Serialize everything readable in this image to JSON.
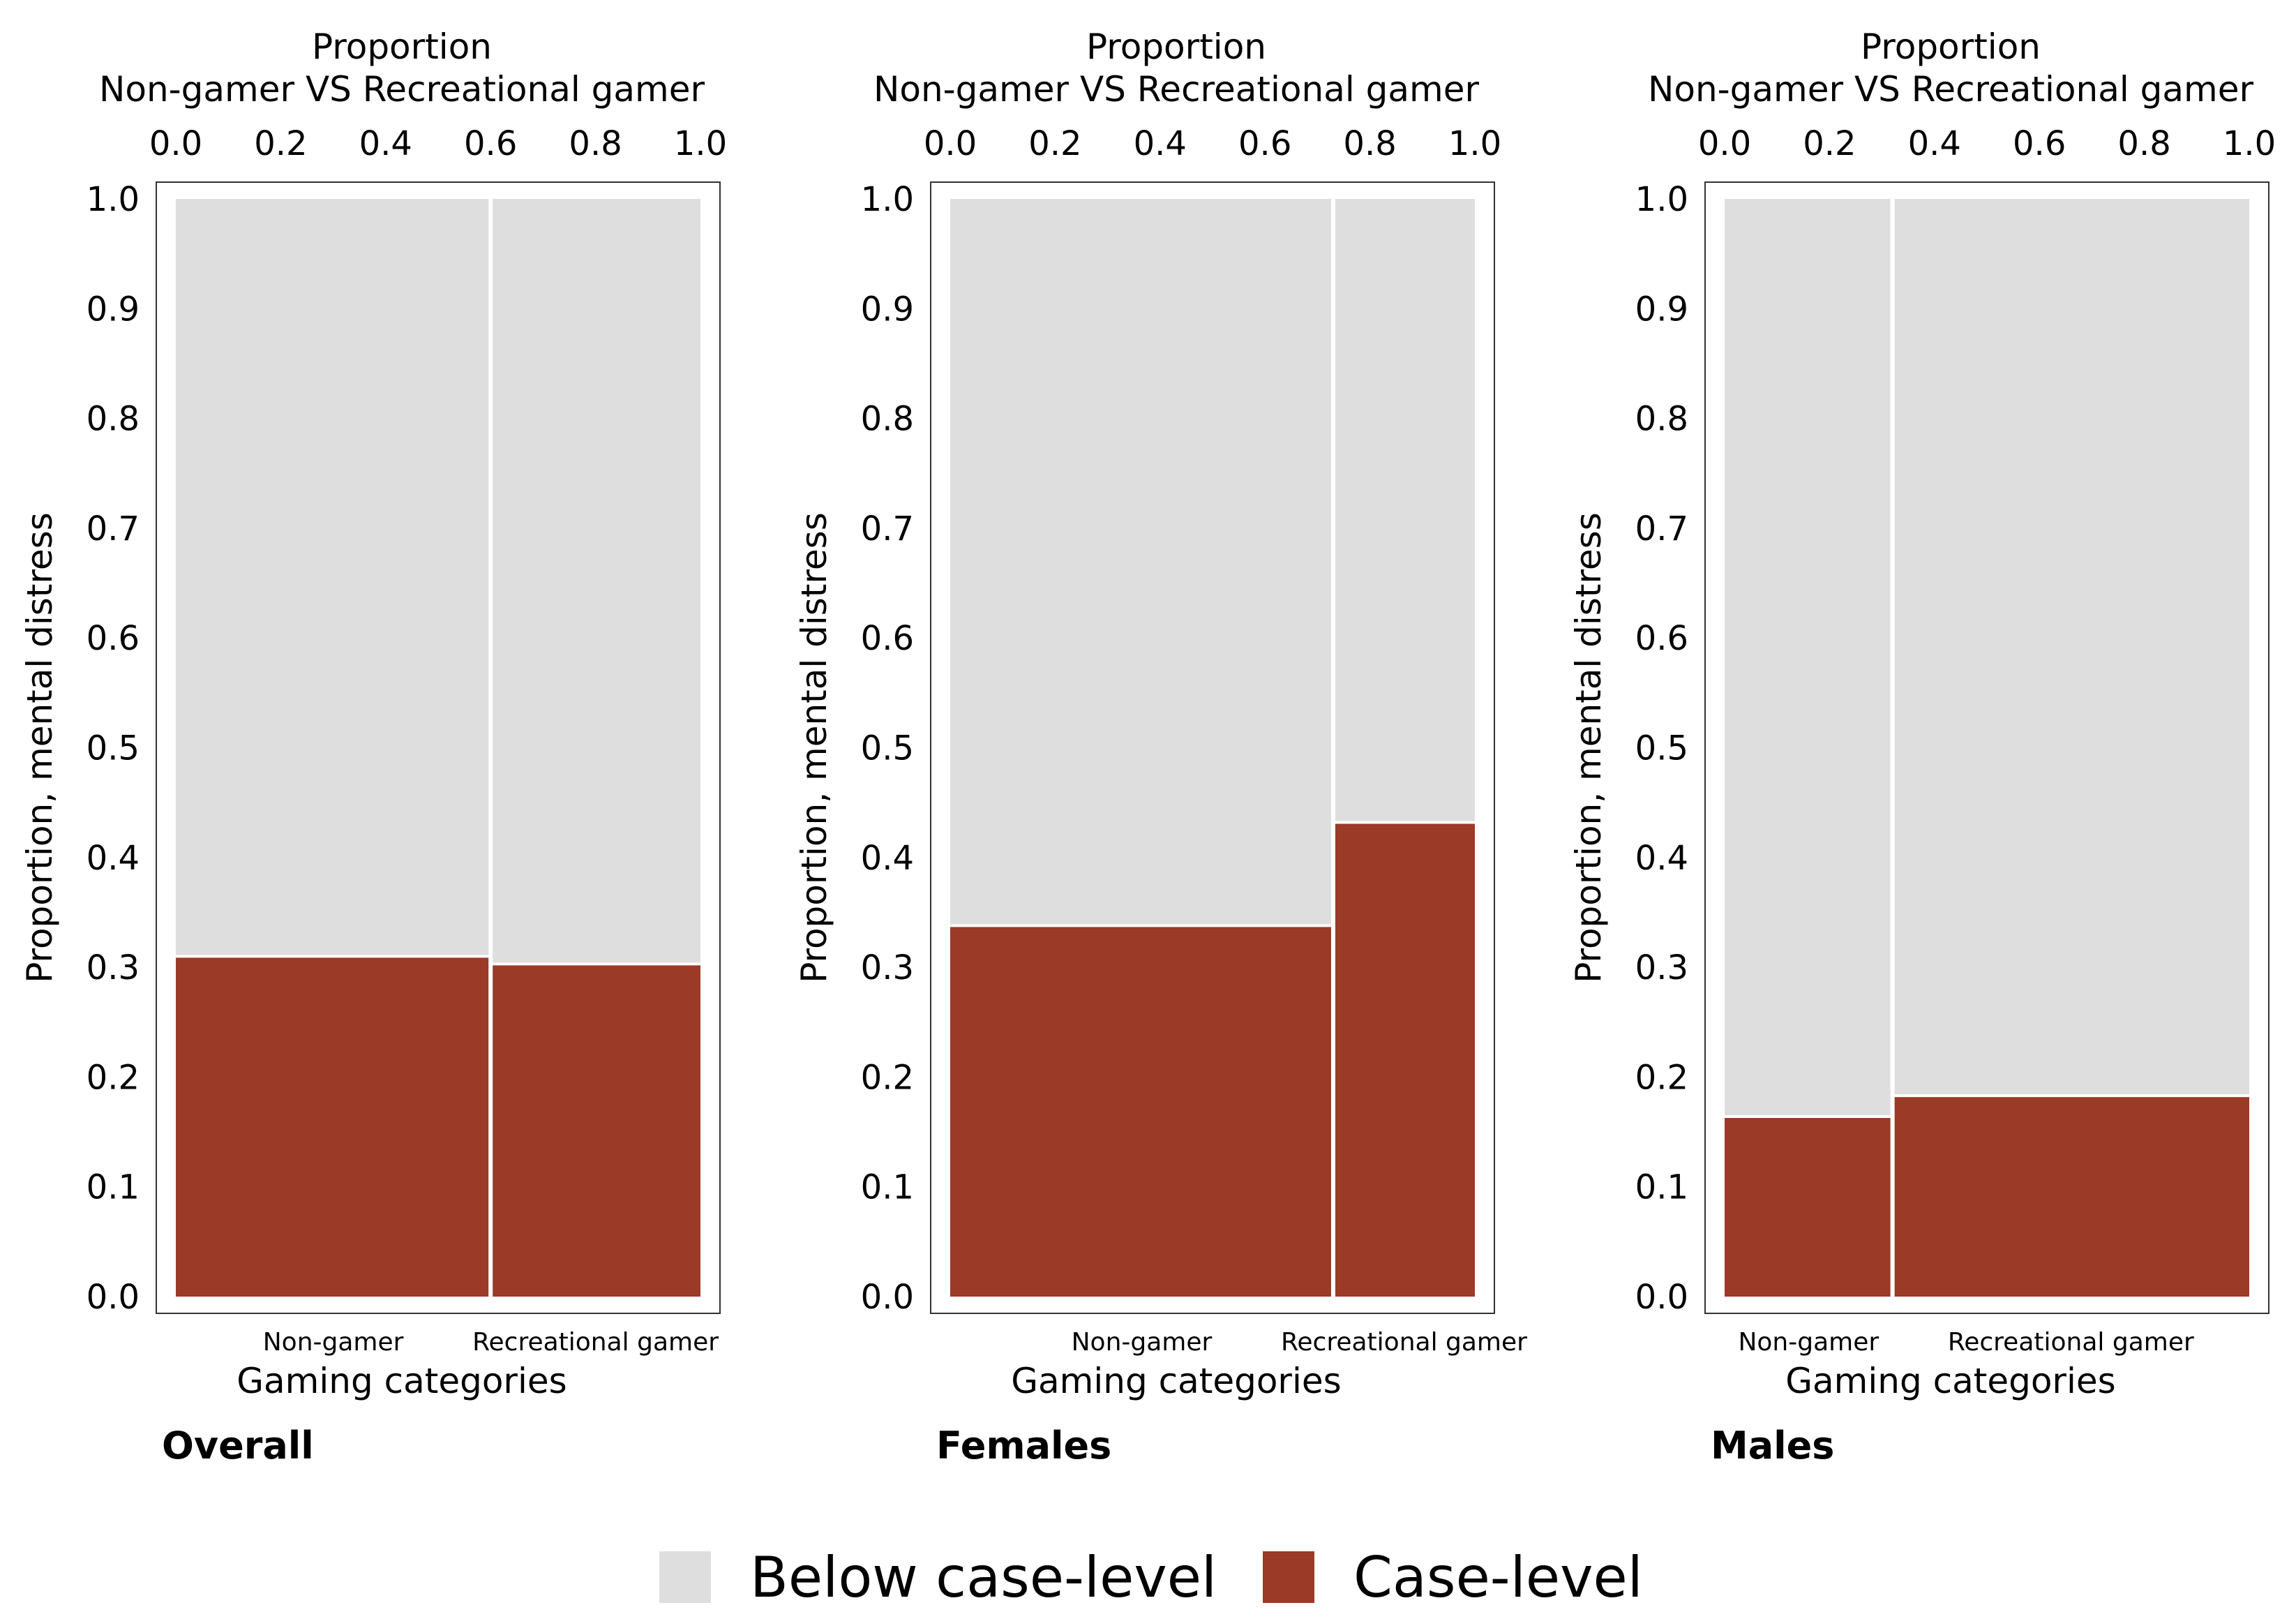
{
  "colors": {
    "below": "#dedede",
    "case": "#9b3a27",
    "frame": "#333333",
    "divider": "#ffffff"
  },
  "legend": {
    "items": [
      {
        "label": "Below case-level",
        "color": "#dedede"
      },
      {
        "label": "Case-level",
        "color": "#9b3a27"
      }
    ]
  },
  "chart_data": [
    {
      "type": "mosaic",
      "panel_label": "Overall",
      "top_axis_title": [
        "Proportion",
        "Non-gamer VS Recreational gamer"
      ],
      "top_axis_ticks": [
        "0.0",
        "0.2",
        "0.4",
        "0.6",
        "0.8",
        "1.0"
      ],
      "ylabel": "Proportion, mental distress",
      "y_ticks": [
        "0.0",
        "0.1",
        "0.2",
        "0.3",
        "0.4",
        "0.5",
        "0.6",
        "0.7",
        "0.8",
        "0.9",
        "1.0"
      ],
      "xlabel": "Gaming categories",
      "categories": [
        "Non-gamer",
        "Recreational gamer"
      ],
      "widths": [
        0.6,
        0.4
      ],
      "case_level": [
        0.31,
        0.303
      ],
      "below_case_level": [
        0.69,
        0.697
      ]
    },
    {
      "type": "mosaic",
      "panel_label": "Females",
      "top_axis_title": [
        "Proportion",
        "Non-gamer VS Recreational gamer"
      ],
      "top_axis_ticks": [
        "0.0",
        "0.2",
        "0.4",
        "0.6",
        "0.8",
        "1.0"
      ],
      "ylabel": "Proportion, mental distress",
      "y_ticks": [
        "0.0",
        "0.1",
        "0.2",
        "0.3",
        "0.4",
        "0.5",
        "0.6",
        "0.7",
        "0.8",
        "0.9",
        "1.0"
      ],
      "xlabel": "Gaming categories",
      "categories": [
        "Non-gamer",
        "Recreational gamer"
      ],
      "widths": [
        0.73,
        0.27
      ],
      "case_level": [
        0.338,
        0.432
      ],
      "below_case_level": [
        0.662,
        0.568
      ]
    },
    {
      "type": "mosaic",
      "panel_label": "Males",
      "top_axis_title": [
        "Proportion",
        "Non-gamer VS Recreational gamer"
      ],
      "top_axis_ticks": [
        "0.0",
        "0.2",
        "0.4",
        "0.6",
        "0.8",
        "1.0"
      ],
      "ylabel": "Proportion, mental distress",
      "y_ticks": [
        "0.0",
        "0.1",
        "0.2",
        "0.3",
        "0.4",
        "0.5",
        "0.6",
        "0.7",
        "0.8",
        "0.9",
        "1.0"
      ],
      "xlabel": "Gaming categories",
      "categories": [
        "Non-gamer",
        "Recreational gamer"
      ],
      "widths": [
        0.32,
        0.68
      ],
      "case_level": [
        0.164,
        0.183
      ],
      "below_case_level": [
        0.836,
        0.817
      ]
    }
  ]
}
